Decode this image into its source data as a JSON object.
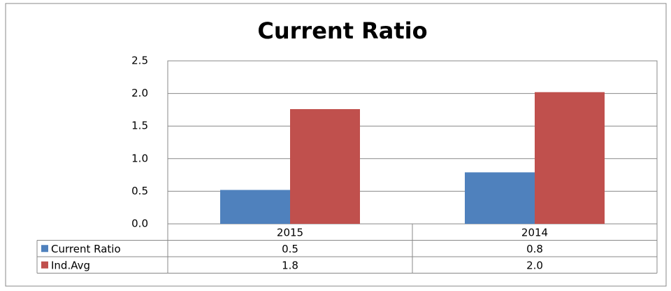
{
  "chart_data": {
    "type": "bar",
    "title": "Current Ratio",
    "categories": [
      "2015",
      "2014"
    ],
    "series": [
      {
        "name": "Current Ratio",
        "color": "#4f81bd",
        "values": [
          0.52,
          0.79
        ],
        "value_labels": [
          "0.5",
          "0.8"
        ]
      },
      {
        "name": "Ind.Avg",
        "color": "#c0504d",
        "values": [
          1.76,
          2.02
        ],
        "value_labels": [
          "1.8",
          "2.0"
        ]
      }
    ],
    "ylim": [
      0,
      2.5
    ],
    "yticks": [
      {
        "value": 0,
        "label": "0.0"
      },
      0.5,
      {
        "value": 1,
        "label": "1.0"
      },
      1.5,
      {
        "value": 2,
        "label": "2.0"
      },
      2.5
    ],
    "grid": true
  }
}
